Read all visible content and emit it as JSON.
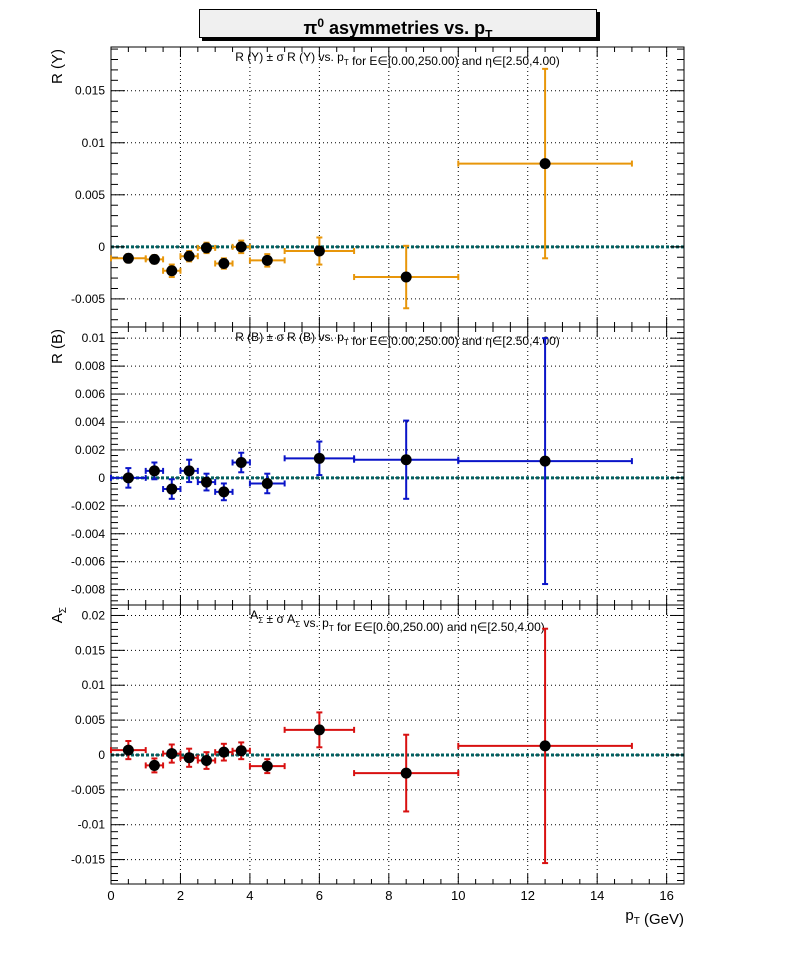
{
  "figure": {
    "title_main": "asymmetries vs. p",
    "title_greek": "π",
    "title_sup": "0",
    "title_sub": "T",
    "colors": {
      "frame": "#000000",
      "grid": "#000000",
      "zero_line": "#006060"
    }
  },
  "chart_data": [
    {
      "type": "scatter",
      "id": "Y",
      "title": "R (Y) ± σ R (Y) vs. p_T for E∈[0.00,250.00) and η∈[2.50,4.00)",
      "xlabel": "p_T (GeV)",
      "ylabel": "R (Y)",
      "xlim": [
        0,
        16.5
      ],
      "ylim": [
        -0.0077,
        0.0192
      ],
      "yticks": [
        -0.005,
        0,
        0.005,
        0.01,
        0.015
      ],
      "ytick_labels": [
        "-0.005",
        "0",
        "0.005",
        "0.01",
        "0.015"
      ],
      "grid": true,
      "color": "#e8960a",
      "points": [
        {
          "x": 0.5,
          "xerr": 0.5,
          "y": -0.0011,
          "yerr": 0.0004
        },
        {
          "x": 1.25,
          "xerr": 0.25,
          "y": -0.0012,
          "yerr": 0.0004
        },
        {
          "x": 1.75,
          "xerr": 0.25,
          "y": -0.0023,
          "yerr": 0.0006
        },
        {
          "x": 2.25,
          "xerr": 0.25,
          "y": -0.0009,
          "yerr": 0.0005
        },
        {
          "x": 2.75,
          "xerr": 0.25,
          "y": -0.0001,
          "yerr": 0.0005
        },
        {
          "x": 3.25,
          "xerr": 0.25,
          "y": -0.0016,
          "yerr": 0.0005
        },
        {
          "x": 3.75,
          "xerr": 0.25,
          "y": 0.0,
          "yerr": 0.0006
        },
        {
          "x": 4.5,
          "xerr": 0.5,
          "y": -0.0013,
          "yerr": 0.0006
        },
        {
          "x": 6.0,
          "xerr": 1.0,
          "y": -0.0004,
          "yerr": 0.0013
        },
        {
          "x": 8.5,
          "xerr": 1.5,
          "y": -0.0029,
          "yerr": 0.003
        },
        {
          "x": 12.5,
          "xerr": 2.5,
          "y": 0.008,
          "yerr": 0.0091
        }
      ]
    },
    {
      "type": "scatter",
      "id": "B",
      "title": "R (B) ± σ R (B) vs. p_T for E∈[0.00,250.00) and η∈[2.50,4.00)",
      "xlabel": "p_T (GeV)",
      "ylabel": "R (B)",
      "xlim": [
        0,
        16.5
      ],
      "ylim": [
        -0.0091,
        0.0108
      ],
      "yticks": [
        -0.008,
        -0.006,
        -0.004,
        -0.002,
        0,
        0.002,
        0.004,
        0.006,
        0.008,
        0.01
      ],
      "ytick_labels": [
        "-0.008",
        "-0.006",
        "-0.004",
        "-0.002",
        "0",
        "0.002",
        "0.004",
        "0.006",
        "0.008",
        "0.01"
      ],
      "grid": true,
      "color": "#0a14c8",
      "points": [
        {
          "x": 0.5,
          "xerr": 0.5,
          "y": 0.0,
          "yerr": 0.0007
        },
        {
          "x": 1.25,
          "xerr": 0.25,
          "y": 0.0005,
          "yerr": 0.0006
        },
        {
          "x": 1.75,
          "xerr": 0.25,
          "y": -0.0008,
          "yerr": 0.0007
        },
        {
          "x": 2.25,
          "xerr": 0.25,
          "y": 0.0005,
          "yerr": 0.0008
        },
        {
          "x": 2.75,
          "xerr": 0.25,
          "y": -0.0003,
          "yerr": 0.0006
        },
        {
          "x": 3.25,
          "xerr": 0.25,
          "y": -0.001,
          "yerr": 0.0006
        },
        {
          "x": 3.75,
          "xerr": 0.25,
          "y": 0.0011,
          "yerr": 0.0007
        },
        {
          "x": 4.5,
          "xerr": 0.5,
          "y": -0.0004,
          "yerr": 0.0007
        },
        {
          "x": 6.0,
          "xerr": 1.0,
          "y": 0.0014,
          "yerr": 0.0012
        },
        {
          "x": 8.5,
          "xerr": 1.5,
          "y": 0.0013,
          "yerr": 0.0028
        },
        {
          "x": 12.5,
          "xerr": 2.5,
          "y": 0.0012,
          "yerr": 0.0088
        }
      ]
    },
    {
      "type": "scatter",
      "id": "Sigma",
      "title": "A_Σ ± σ A_Σ vs. p_T for E∈[0.00,250.00) and η∈[2.50,4.00)",
      "xlabel": "p_T (GeV)",
      "ylabel": "A_Σ",
      "xlim": [
        0,
        16.5
      ],
      "ylim": [
        -0.0185,
        0.0215
      ],
      "yticks": [
        -0.015,
        -0.01,
        -0.005,
        0,
        0.005,
        0.01,
        0.015,
        0.02
      ],
      "ytick_labels": [
        "-0.015",
        "-0.01",
        "-0.005",
        "0",
        "0.005",
        "0.01",
        "0.015",
        "0.02"
      ],
      "xticks": [
        0,
        2,
        4,
        6,
        8,
        10,
        12,
        14,
        16
      ],
      "xtick_labels": [
        "0",
        "2",
        "4",
        "6",
        "8",
        "10",
        "12",
        "14",
        "16"
      ],
      "grid": true,
      "color": "#d81010",
      "points": [
        {
          "x": 0.5,
          "xerr": 0.5,
          "y": 0.0007,
          "yerr": 0.0013
        },
        {
          "x": 1.25,
          "xerr": 0.25,
          "y": -0.0015,
          "yerr": 0.001
        },
        {
          "x": 1.75,
          "xerr": 0.25,
          "y": 0.0002,
          "yerr": 0.0013
        },
        {
          "x": 2.25,
          "xerr": 0.25,
          "y": -0.0004,
          "yerr": 0.0013
        },
        {
          "x": 2.75,
          "xerr": 0.25,
          "y": -0.0008,
          "yerr": 0.0012
        },
        {
          "x": 3.25,
          "xerr": 0.25,
          "y": 0.0004,
          "yerr": 0.0012
        },
        {
          "x": 3.75,
          "xerr": 0.25,
          "y": 0.0006,
          "yerr": 0.0012
        },
        {
          "x": 4.5,
          "xerr": 0.5,
          "y": -0.0016,
          "yerr": 0.001
        },
        {
          "x": 6.0,
          "xerr": 1.0,
          "y": 0.0036,
          "yerr": 0.0025
        },
        {
          "x": 8.5,
          "xerr": 1.5,
          "y": -0.0026,
          "yerr": 0.0055
        },
        {
          "x": 12.5,
          "xerr": 2.5,
          "y": 0.0013,
          "yerr": 0.0168
        }
      ]
    }
  ]
}
